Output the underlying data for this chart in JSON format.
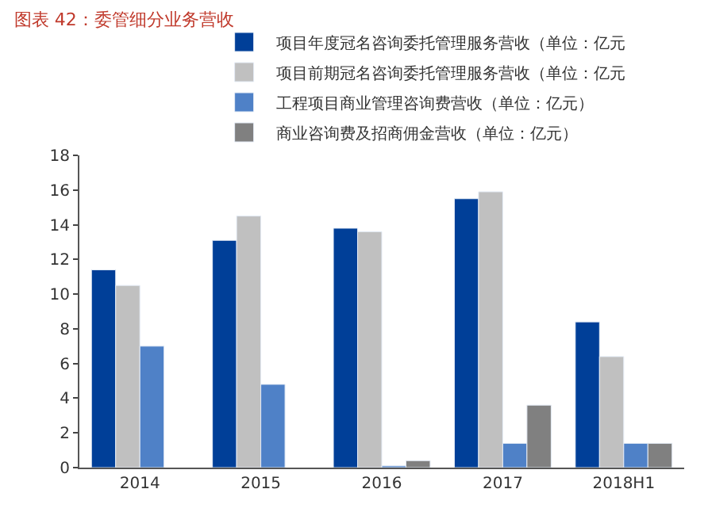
{
  "chart_data": {
    "type": "bar",
    "title": "图表 42：委管细分业务营收",
    "categories": [
      "2014",
      "2015",
      "2016",
      "2017",
      "2018H1"
    ],
    "series": [
      {
        "name": "项目年度冠名咨询委托管理服务营收（单位：亿元",
        "color": "#003f98",
        "values": [
          11.4,
          13.1,
          13.8,
          15.5,
          8.4
        ]
      },
      {
        "name": "项目前期冠名咨询委托管理服务营收（单位：亿元",
        "color": "#c0c0c0",
        "values": [
          10.5,
          14.5,
          13.6,
          15.9,
          6.4
        ]
      },
      {
        "name": "工程项目商业管理咨询费营收（单位：亿元）",
        "color": "#4f81c7",
        "values": [
          7.0,
          4.8,
          0.1,
          1.4,
          1.4
        ]
      },
      {
        "name": "商业咨询费及招商佣金营收（单位：亿元）",
        "color": "#808080",
        "values": [
          null,
          null,
          0.4,
          3.6,
          1.4
        ]
      }
    ],
    "ylim": [
      0,
      18
    ],
    "yticks": [
      0,
      2,
      4,
      6,
      8,
      10,
      12,
      14,
      16,
      18
    ],
    "legend": "top"
  }
}
